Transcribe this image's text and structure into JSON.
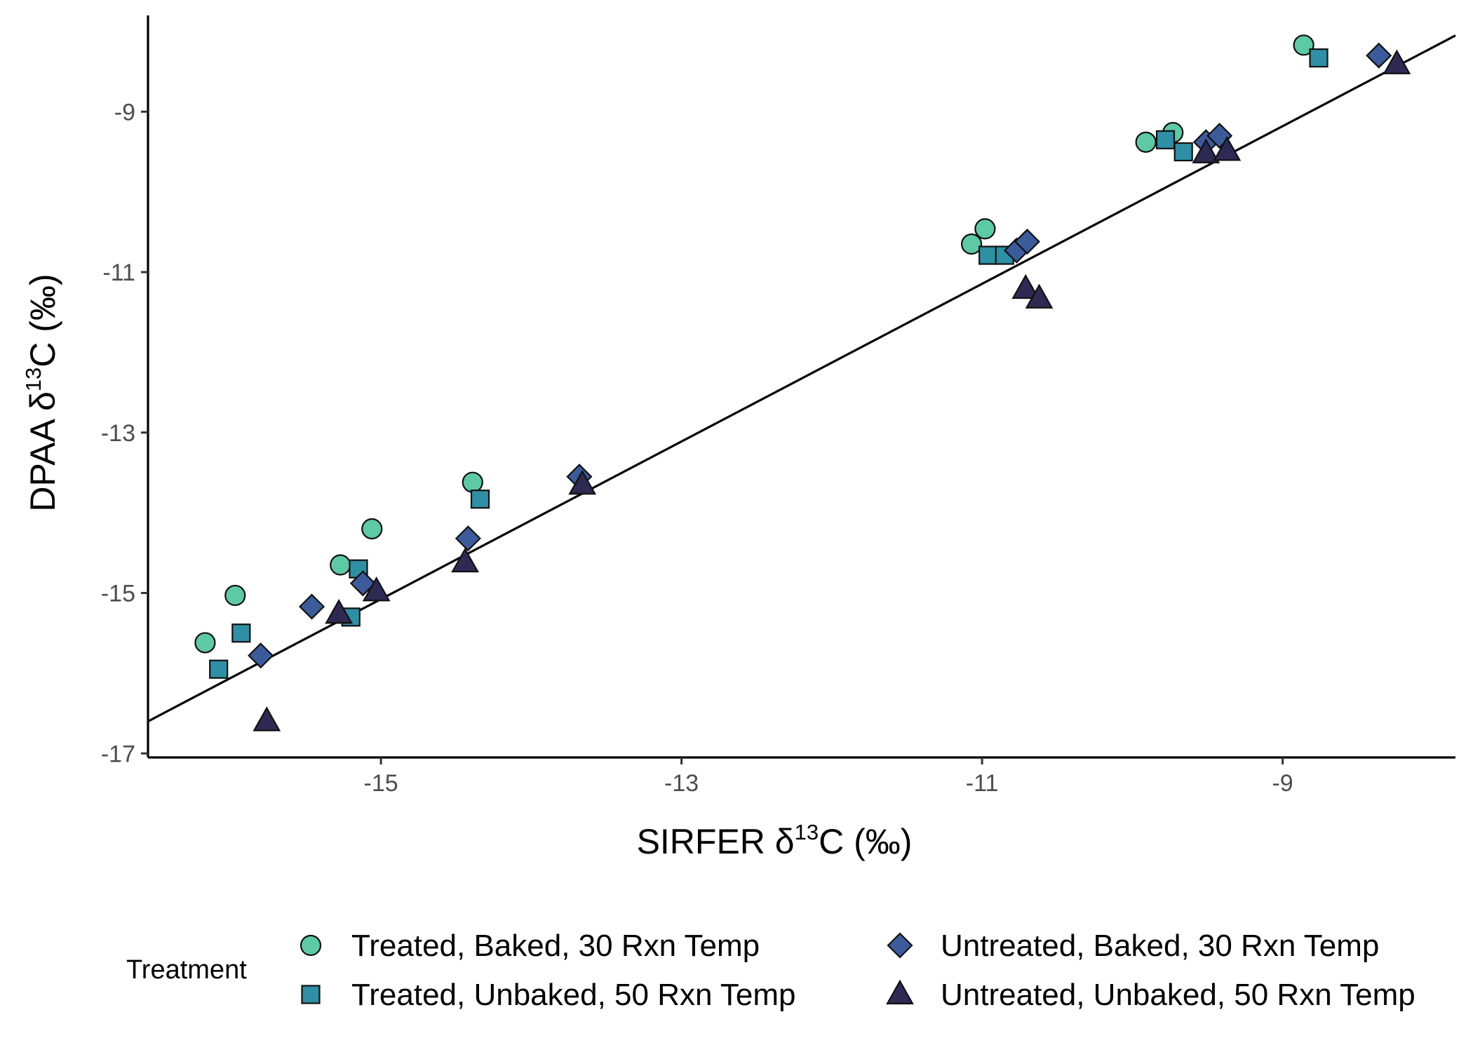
{
  "chart_data": {
    "type": "scatter",
    "x_title": {
      "pre": "SIRFER δ",
      "sup": "13",
      "post": "C (‰)"
    },
    "y_title": {
      "pre": "DPAA δ",
      "sup": "13",
      "post": "C (‰)"
    },
    "xlim": [
      -16.55,
      -7.85
    ],
    "ylim": [
      -17.05,
      -7.8
    ],
    "x_ticks": [
      -15,
      -13,
      -11,
      -9
    ],
    "x_tick_labels": [
      "-15",
      "-13",
      "-11",
      "-9"
    ],
    "y_ticks": [
      -9,
      -11,
      -13,
      -15,
      -17
    ],
    "y_tick_labels": [
      "-9",
      "-11",
      "-13",
      "-15",
      "-17"
    ],
    "grid": false,
    "legend": {
      "title": "Treatment",
      "position": "bottom"
    },
    "fit_line": {
      "x": [
        -16.55,
        -7.85
      ],
      "y": [
        -16.6,
        -8.05
      ]
    },
    "series": [
      {
        "name": "Treated, Baked, 30 Rxn Temp",
        "shape": "circle",
        "color": "#5ec9a5",
        "x": [
          -16.17,
          -15.97,
          -15.27,
          -15.06,
          -14.39,
          -11.07,
          -10.98,
          -9.91,
          -9.73,
          -8.86
        ],
        "y": [
          -15.62,
          -15.03,
          -14.65,
          -14.2,
          -13.62,
          -10.65,
          -10.46,
          -9.38,
          -9.26,
          -8.17
        ]
      },
      {
        "name": "Treated, Unbaked, 50 Rxn Temp",
        "shape": "square",
        "color": "#2f8fa4",
        "x": [
          -16.08,
          -15.93,
          -15.2,
          -15.15,
          -14.34,
          -10.96,
          -10.85,
          -9.78,
          -9.66,
          -8.76
        ],
        "y": [
          -15.95,
          -15.5,
          -15.3,
          -14.7,
          -13.83,
          -10.79,
          -10.79,
          -9.35,
          -9.5,
          -8.33
        ]
      },
      {
        "name": "Untreated, Baked, 30 Rxn Temp",
        "shape": "diamond",
        "color": "#3b5b9b",
        "x": [
          -15.8,
          -15.46,
          -15.12,
          -14.42,
          -13.68,
          -10.77,
          -10.7,
          -9.51,
          -9.42,
          -8.36
        ],
        "y": [
          -15.78,
          -15.17,
          -14.88,
          -14.32,
          -13.55,
          -10.73,
          -10.62,
          -9.38,
          -9.3,
          -8.3
        ]
      },
      {
        "name": "Untreated, Unbaked, 50 Rxn Temp",
        "shape": "triangle",
        "color": "#2f2a54",
        "x": [
          -15.76,
          -15.28,
          -15.03,
          -14.44,
          -13.66,
          -10.71,
          -10.62,
          -9.51,
          -9.37,
          -8.24
        ],
        "y": [
          -16.6,
          -15.26,
          -14.98,
          -14.62,
          -13.65,
          -11.21,
          -11.33,
          -9.52,
          -9.49,
          -8.41
        ]
      }
    ]
  }
}
